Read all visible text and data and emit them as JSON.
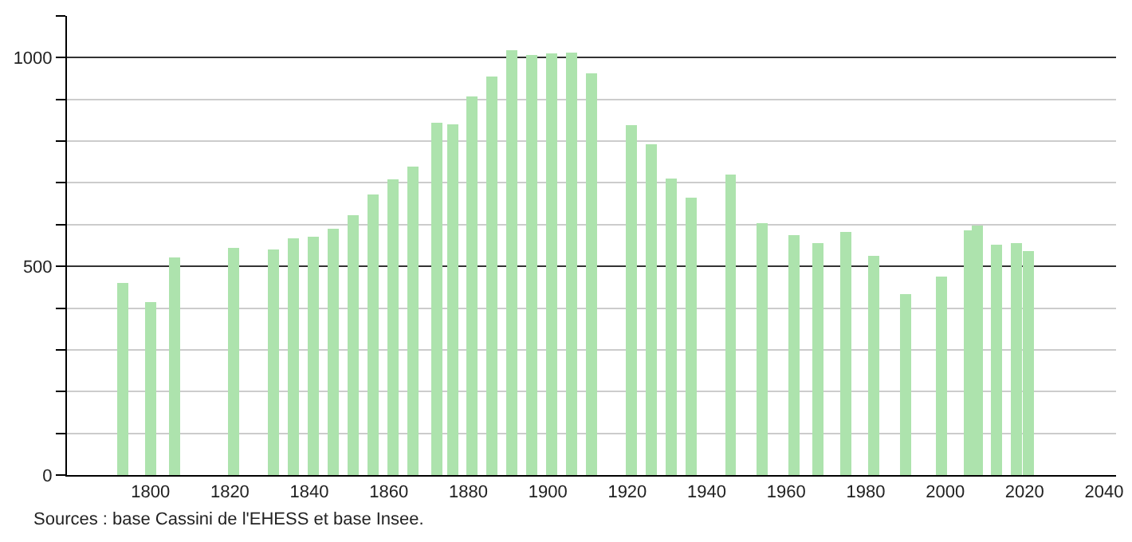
{
  "chart_data": {
    "type": "bar",
    "color": "#ade3ad",
    "x": [
      1793,
      1800,
      1806,
      1821,
      1831,
      1836,
      1841,
      1846,
      1851,
      1856,
      1861,
      1866,
      1872,
      1876,
      1881,
      1886,
      1891,
      1896,
      1901,
      1906,
      1911,
      1921,
      1926,
      1931,
      1936,
      1946,
      1954,
      1962,
      1968,
      1975,
      1982,
      1990,
      1999,
      2006,
      2008,
      2013,
      2018,
      2021
    ],
    "values": [
      460,
      415,
      521,
      545,
      541,
      568,
      571,
      590,
      622,
      672,
      709,
      739,
      844,
      840,
      907,
      955,
      1017,
      1006,
      1010,
      1013,
      963,
      838,
      792,
      710,
      665,
      720,
      604,
      574,
      556,
      583,
      525,
      434,
      476,
      587,
      598,
      552,
      556,
      536
    ],
    "xlim": [
      1779,
      2043
    ],
    "xticks": [
      1800,
      1820,
      1840,
      1860,
      1880,
      1900,
      1920,
      1940,
      1960,
      1980,
      2000,
      2020,
      2040
    ],
    "ylim": [
      0,
      1100
    ],
    "yticks": [
      0,
      {
        "value": 100,
        "label": null
      },
      {
        "value": 200,
        "label": null
      },
      {
        "value": 300,
        "label": null
      },
      {
        "value": 400,
        "label": null
      },
      500,
      {
        "value": 600,
        "label": null
      },
      {
        "value": 700,
        "label": null
      },
      {
        "value": 800,
        "label": null
      },
      {
        "value": 900,
        "label": null
      },
      1000,
      {
        "value": 1100,
        "label": null
      }
    ],
    "grid": "y",
    "annotations": [
      "Sources : base Cassini de l'EHESS et base Insee."
    ]
  }
}
